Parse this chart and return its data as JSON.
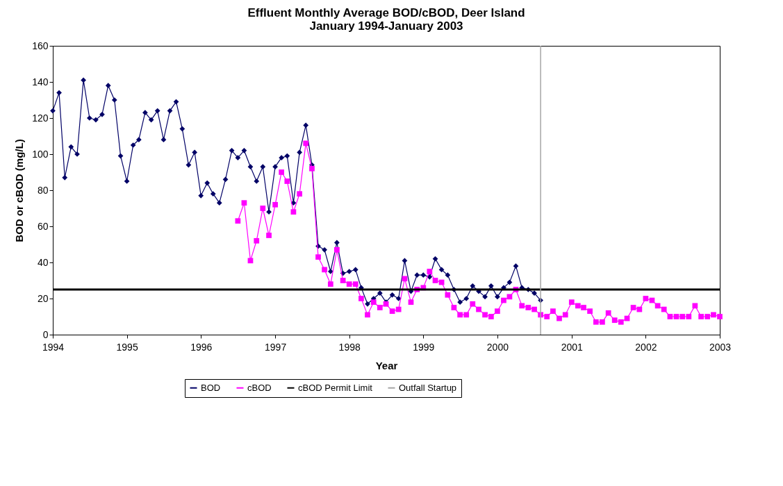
{
  "chart_data": {
    "type": "line",
    "title": "Effluent Monthly Average BOD/cBOD, Deer Island\nJanuary  1994-January 2003",
    "xlabel": "Year",
    "ylabel": "BOD or cBOD (mg/L)",
    "xlim": [
      "1994-01",
      "2003-01"
    ],
    "xticks": [
      "1994",
      "1995",
      "1996",
      "1997",
      "1998",
      "1999",
      "2000",
      "2001",
      "2002",
      "2003"
    ],
    "ylim": [
      0,
      160
    ],
    "yticks": [
      0,
      20,
      40,
      60,
      80,
      100,
      120,
      140,
      160
    ],
    "grid": false,
    "legend": "bottom",
    "line_style": "solid",
    "x": [
      "1994-01",
      "1994-02",
      "1994-03",
      "1994-04",
      "1994-05",
      "1994-06",
      "1994-07",
      "1994-08",
      "1994-09",
      "1994-10",
      "1994-11",
      "1994-12",
      "1995-01",
      "1995-02",
      "1995-03",
      "1995-04",
      "1995-05",
      "1995-06",
      "1995-07",
      "1995-08",
      "1995-09",
      "1995-10",
      "1995-11",
      "1995-12",
      "1996-01",
      "1996-02",
      "1996-03",
      "1996-04",
      "1996-05",
      "1996-06",
      "1996-07",
      "1996-08",
      "1996-09",
      "1996-10",
      "1996-11",
      "1996-12",
      "1997-01",
      "1997-02",
      "1997-03",
      "1997-04",
      "1997-05",
      "1997-06",
      "1997-07",
      "1997-08",
      "1997-09",
      "1997-10",
      "1997-11",
      "1997-12",
      "1998-01",
      "1998-02",
      "1998-03",
      "1998-04",
      "1998-05",
      "1998-06",
      "1998-07",
      "1998-08",
      "1998-09",
      "1998-10",
      "1998-11",
      "1998-12",
      "1999-01",
      "1999-02",
      "1999-03",
      "1999-04",
      "1999-05",
      "1999-06",
      "1999-07",
      "1999-08",
      "1999-09",
      "1999-10",
      "1999-11",
      "1999-12",
      "2000-01",
      "2000-02",
      "2000-03",
      "2000-04",
      "2000-05",
      "2000-06",
      "2000-07",
      "2000-08",
      "2000-09",
      "2000-10",
      "2000-11",
      "2000-12",
      "2001-01",
      "2001-02",
      "2001-03",
      "2001-04",
      "2001-05",
      "2001-06",
      "2001-07",
      "2001-08",
      "2001-09",
      "2001-10",
      "2001-11",
      "2001-12",
      "2002-01",
      "2002-02",
      "2002-03",
      "2002-04",
      "2002-05",
      "2002-06",
      "2002-07",
      "2002-08",
      "2002-09",
      "2002-10",
      "2002-11",
      "2002-12",
      "2003-01"
    ],
    "series": [
      {
        "name": "BOD",
        "color": "#000066",
        "marker": "diamond",
        "values": [
          124,
          134,
          87,
          104,
          100,
          141,
          120,
          119,
          122,
          138,
          130,
          99,
          85,
          105,
          108,
          123,
          119,
          124,
          108,
          124,
          129,
          114,
          94,
          101,
          77,
          84,
          78,
          73,
          86,
          102,
          98,
          102,
          93,
          85,
          93,
          68,
          93,
          98,
          99,
          73,
          101,
          116,
          94,
          49,
          47,
          35,
          51,
          34,
          35,
          36,
          26,
          17,
          20,
          23,
          18,
          22,
          20,
          41,
          24,
          33,
          33,
          32,
          42,
          36,
          33,
          25,
          18,
          20,
          27,
          24,
          21,
          27,
          21,
          26,
          29,
          38,
          26,
          25,
          23,
          19,
          null,
          null,
          null,
          null,
          null,
          null,
          null,
          null,
          null,
          null,
          null,
          null,
          null,
          null,
          null,
          null,
          null,
          null,
          null,
          null,
          null,
          null,
          null,
          null,
          null,
          null,
          null,
          null,
          null
        ]
      },
      {
        "name": "cBOD",
        "color": "#ff00ff",
        "marker": "square",
        "values": [
          null,
          null,
          null,
          null,
          null,
          null,
          null,
          null,
          null,
          null,
          null,
          null,
          null,
          null,
          null,
          null,
          null,
          null,
          null,
          null,
          null,
          null,
          null,
          null,
          null,
          null,
          null,
          null,
          null,
          null,
          63,
          73,
          41,
          52,
          70,
          55,
          72,
          90,
          85,
          68,
          78,
          106,
          92,
          43,
          36,
          28,
          47,
          30,
          28,
          28,
          20,
          11,
          18,
          15,
          17,
          13,
          14,
          31,
          18,
          25,
          26,
          35,
          30,
          29,
          22,
          15,
          11,
          11,
          17,
          14,
          11,
          10,
          13,
          19,
          21,
          25,
          16,
          15,
          14,
          11,
          10,
          13,
          9,
          11,
          18,
          16,
          15,
          13,
          7,
          7,
          12,
          8,
          7,
          9,
          15,
          14,
          20,
          19,
          16,
          14,
          10,
          10,
          10,
          10,
          16,
          10,
          10,
          11,
          10
        ]
      }
    ],
    "ref_lines": [
      {
        "axis": "y",
        "value": 25,
        "label": "cBOD Permit Limit",
        "color": "#000000"
      },
      {
        "axis": "x",
        "value": "2000-08",
        "label": "Outfall Startup",
        "color": "#a6a6a6"
      }
    ]
  }
}
